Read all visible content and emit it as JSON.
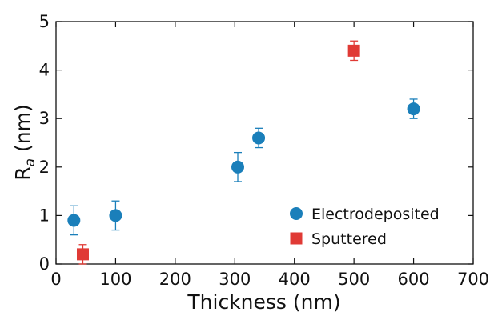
{
  "chart_data": {
    "type": "scatter",
    "xlabel": "Thickness (nm)",
    "ylabel": {
      "base": "R",
      "subscript": "a",
      "rest": " (nm)"
    },
    "xlim": [
      0,
      700
    ],
    "ylim": [
      0,
      5
    ],
    "xticks": [
      0,
      100,
      200,
      300,
      400,
      500,
      600,
      700
    ],
    "yticks": [
      0,
      1,
      2,
      3,
      4,
      5
    ],
    "grid": false,
    "legend_position": "bottom-right",
    "series": [
      {
        "name": "Electrodeposited",
        "marker": "circle",
        "color": "#1a7fba",
        "points": [
          {
            "x": 30,
            "y": 0.9,
            "err": 0.3
          },
          {
            "x": 100,
            "y": 1.0,
            "err": 0.3
          },
          {
            "x": 305,
            "y": 2.0,
            "err": 0.3
          },
          {
            "x": 340,
            "y": 2.6,
            "err": 0.2
          },
          {
            "x": 600,
            "y": 3.2,
            "err": 0.2
          }
        ]
      },
      {
        "name": "Sputtered",
        "marker": "square",
        "color": "#e03a35",
        "points": [
          {
            "x": 45,
            "y": 0.2,
            "err": 0.2
          },
          {
            "x": 500,
            "y": 4.4,
            "err": 0.2
          }
        ]
      }
    ]
  }
}
